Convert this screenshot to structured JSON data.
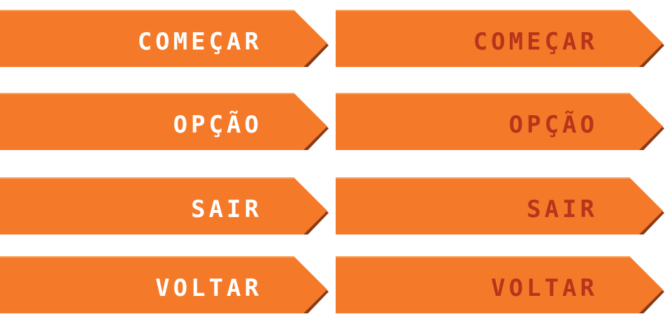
{
  "colors": {
    "face": "#F47A2A",
    "shadow": "#8A3A16",
    "highlight": "#F9A461",
    "text_normal": "#FFFFFF",
    "text_hover": "#B8341A"
  },
  "buttons": {
    "normal": [
      {
        "label": "COMEÇAR"
      },
      {
        "label": "OPÇÃO"
      },
      {
        "label": "SAIR"
      },
      {
        "label": "VOLTAR"
      }
    ],
    "hover": [
      {
        "label": "COMEÇAR"
      },
      {
        "label": "OPÇÃO"
      },
      {
        "label": "SAIR"
      },
      {
        "label": "VOLTAR"
      }
    ]
  }
}
